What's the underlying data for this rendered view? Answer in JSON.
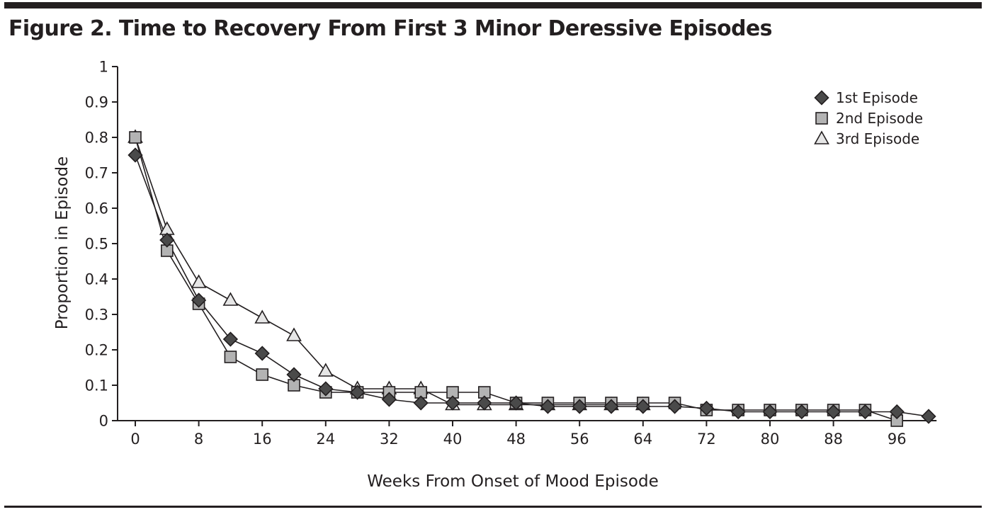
{
  "figure": {
    "title": "Figure 2. Time to Recovery From First 3 Minor Deressive Episodes"
  },
  "chart_data": {
    "type": "line",
    "title": "Figure 2. Time to Recovery From First 3 Minor Deressive Episodes",
    "xlabel": "Weeks From Onset of Mood Episode",
    "ylabel": "Proportion in Episode",
    "xlim": [
      -2,
      101
    ],
    "ylim": [
      0,
      1
    ],
    "xticks": [
      0,
      8,
      16,
      24,
      32,
      40,
      48,
      56,
      64,
      72,
      80,
      88,
      96
    ],
    "yticks": [
      0,
      0.1,
      0.2,
      0.3,
      0.4,
      0.5,
      0.6,
      0.7,
      0.8,
      0.9,
      1
    ],
    "ytick_labels": [
      "0",
      "0.1",
      "0.2",
      "0.3",
      "0.4",
      "0.5",
      "0.6",
      "0.7",
      "0.8",
      "0.9",
      "1"
    ],
    "grid": false,
    "legend_position": "top-right",
    "series": [
      {
        "name": "1st Episode",
        "marker": "diamond",
        "color": "#4a4a4a",
        "x": [
          0,
          4,
          8,
          12,
          16,
          20,
          24,
          28,
          32,
          36,
          40,
          44,
          48,
          52,
          56,
          60,
          64,
          68,
          72,
          76,
          80,
          84,
          88,
          92,
          96,
          100
        ],
        "y": [
          0.75,
          0.51,
          0.34,
          0.23,
          0.19,
          0.13,
          0.09,
          0.08,
          0.06,
          0.05,
          0.05,
          0.05,
          0.05,
          0.04,
          0.04,
          0.04,
          0.04,
          0.04,
          0.035,
          0.025,
          0.025,
          0.025,
          0.025,
          0.025,
          0.025,
          0.012
        ]
      },
      {
        "name": "2nd Episode",
        "marker": "square",
        "color": "#b3b3b3",
        "x": [
          0,
          4,
          8,
          12,
          16,
          20,
          24,
          28,
          32,
          36,
          40,
          44,
          48,
          52,
          56,
          60,
          64,
          68,
          72,
          76,
          80,
          84,
          88,
          92,
          96
        ],
        "y": [
          0.8,
          0.48,
          0.33,
          0.18,
          0.13,
          0.1,
          0.08,
          0.08,
          0.08,
          0.08,
          0.08,
          0.08,
          0.05,
          0.05,
          0.05,
          0.05,
          0.05,
          0.05,
          0.03,
          0.03,
          0.03,
          0.03,
          0.03,
          0.03,
          0.0
        ]
      },
      {
        "name": "3rd Episode",
        "marker": "triangle",
        "color": "#e6e6e6",
        "x": [
          0,
          4,
          8,
          12,
          16,
          20,
          24,
          28,
          32,
          36,
          40,
          44,
          48,
          52,
          56,
          60,
          64
        ],
        "y": [
          0.8,
          0.54,
          0.39,
          0.34,
          0.29,
          0.24,
          0.14,
          0.09,
          0.09,
          0.09,
          0.045,
          0.045,
          0.045,
          0.045,
          0.045,
          0.045,
          0.045
        ]
      }
    ]
  }
}
